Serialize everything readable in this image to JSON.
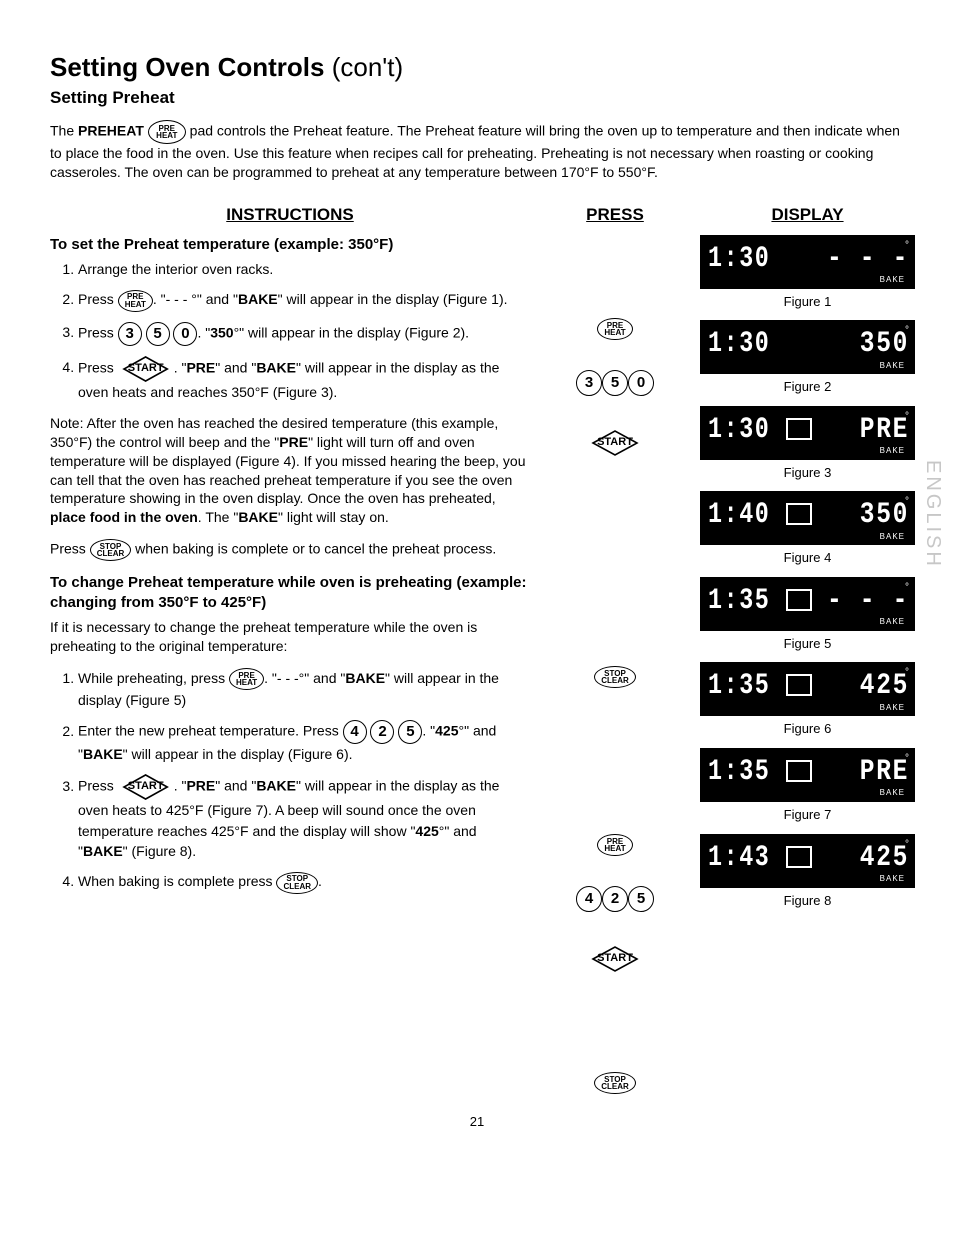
{
  "page_number": "21",
  "side_lang": "ENGLISH",
  "title_main": "Setting Oven Controls",
  "title_cont": "(con't)",
  "subtitle": "Setting Preheat",
  "intro": {
    "pre": "The ",
    "bold1": "PREHEAT",
    "btn_preheat_top": "PRE",
    "btn_preheat_bot": "HEAT",
    "post": " pad controls the Preheat feature. The Preheat feature will bring the oven up to temperature and then indicate when to place the food in the oven. Use this feature when recipes call for preheating. Preheating is not necessary when roasting or cooking casseroles. The oven can be programmed to preheat at any temperature between 170°F to 550°F."
  },
  "col_headers": {
    "instr": "INSTRUCTIONS",
    "press": "PRESS",
    "display": "DISPLAY"
  },
  "sec1_hdr": "To set the Preheat temperature (example: 350°F)",
  "sec1": {
    "s1": "Arrange the interior oven racks.",
    "s2a": "Press ",
    "s2b": ". \"- - - °\" and \"",
    "bake": "BAKE",
    "s2c": "\" will appear in the display (Figure 1).",
    "s3a": "Press ",
    "d3": "3",
    "d5": "5",
    "d0": "0",
    "s3b": ". \"",
    "v350": "350",
    "s3c": "°\" will appear in the display (Figure 2).",
    "s4a": "Press ",
    "start": "START",
    "s4b": ". \"",
    "pre": "PRE",
    "s4c": "\" and \"",
    "s4d": "\" will appear in the display as the oven heats and reaches 350°F (Figure 3)."
  },
  "note": {
    "a": "Note: After the oven has reached the desired temperature (this example, 350°F) the control will beep and the \"",
    "pre": "PRE",
    "b": "\" light will turn off and oven temperature will be displayed (Figure 4). If you missed hearing the beep, you can tell that the oven has reached preheat temperature if you see the oven temperature showing in the oven display. Once the oven has preheated, ",
    "bold": "place food in the oven",
    "c": ". The \"",
    "bake": "BAKE",
    "d": "\" light will stay on."
  },
  "stopline": {
    "a": "Press ",
    "stop_top": "STOP",
    "stop_bot": "CLEAR",
    "b": " when baking is complete or to cancel the preheat process."
  },
  "sec2_hdr": "To change Preheat temperature while oven is preheating (example: changing from 350°F to 425°F)",
  "sec2_intro": "If it is necessary to change the preheat temperature while the oven is preheating to the original temperature:",
  "sec2": {
    "s1a": "While preheating, press ",
    "s1b": ". \"- - -°\" and \"",
    "bake": "BAKE",
    "s1c": "\" will appear in the display (Figure 5)",
    "s2a": "Enter the new preheat temperature. Press ",
    "d4": "4",
    "d2": "2",
    "d55": "5",
    "s2b": ". \"",
    "v425": "425",
    "s2c": "°\" and \"",
    "s2d": "\"  will appear in the display (Figure 6).",
    "s3a": "Press ",
    "s3b": ". \"",
    "pre": "PRE",
    "s3c": "\" and \"",
    "s3d": "\" will appear in the display as the oven heats to 425°F (Figure 7). A beep will sound once the oven temperature reaches 425°F and  the display will show \"",
    "s3e": "°\" and \"",
    "s3f": "\" (Figure 8).",
    "s4a": "When baking is complete press ",
    "s4b": "."
  },
  "displays": [
    {
      "time": "1:30",
      "val": "- - -",
      "box": false,
      "cap": "Figure 1"
    },
    {
      "time": "1:30",
      "val": "350",
      "box": false,
      "cap": "Figure 2"
    },
    {
      "time": "1:30",
      "val": "PRE",
      "box": true,
      "cap": "Figure 3"
    },
    {
      "time": "1:40",
      "val": "350",
      "box": true,
      "cap": "Figure 4"
    },
    {
      "time": "1:35",
      "val": "- - -",
      "box": true,
      "cap": "Figure 5"
    },
    {
      "time": "1:35",
      "val": "425",
      "box": true,
      "cap": "Figure 6"
    },
    {
      "time": "1:35",
      "val": "PRE",
      "box": true,
      "cap": "Figure 7"
    },
    {
      "time": "1:43",
      "val": "425",
      "box": true,
      "cap": "Figure 8"
    }
  ],
  "bake_label": "BAKE"
}
